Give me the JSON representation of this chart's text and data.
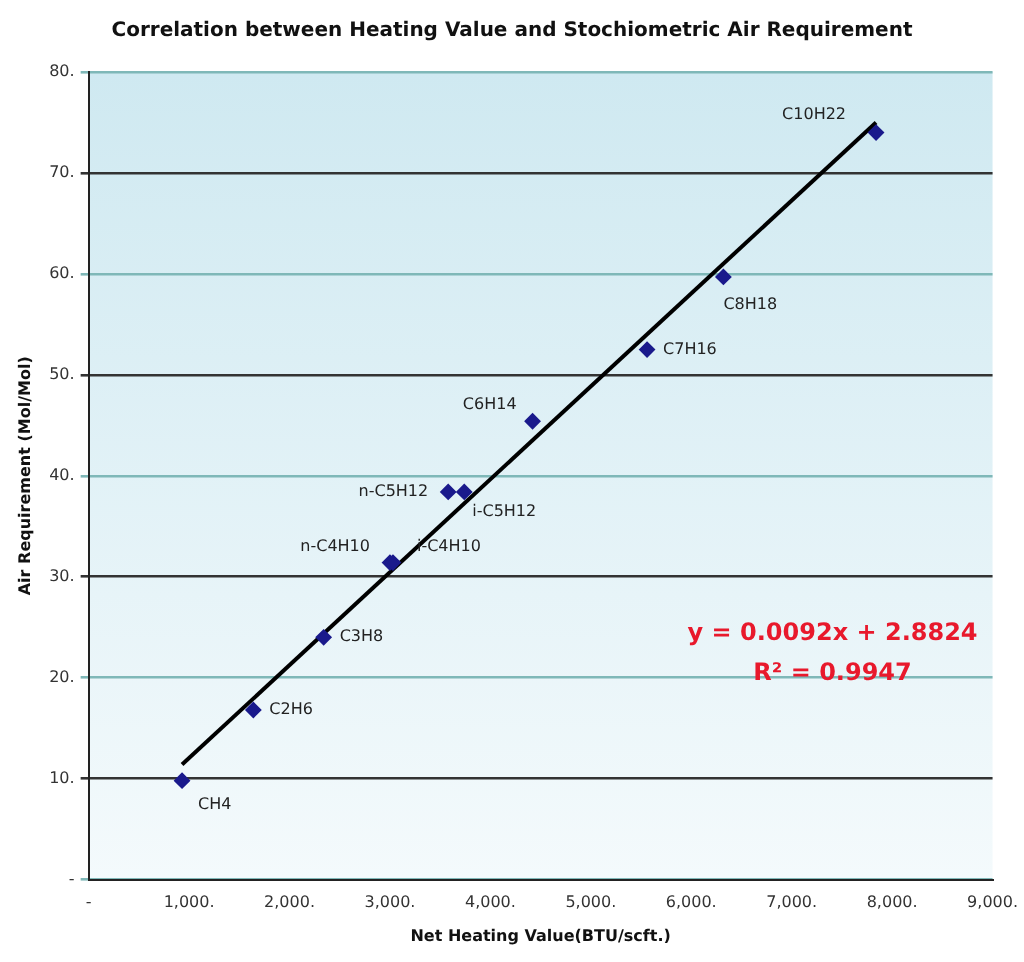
{
  "chart_data": {
    "type": "scatter",
    "title": "Correlation between Heating Value and Stochiometric Air Requirement",
    "xlabel": "Net Heating Value(BTU/scft.)",
    "ylabel": "Air Requirement (Mol/Mol)",
    "xlim": [
      0,
      9000
    ],
    "ylim": [
      0,
      80
    ],
    "xticks": [
      {
        "value": 0,
        "label": "-"
      },
      {
        "value": 1000,
        "label": "1,000."
      },
      {
        "value": 2000,
        "label": "2,000."
      },
      {
        "value": 3000,
        "label": "3,000."
      },
      {
        "value": 4000,
        "label": "4,000."
      },
      {
        "value": 5000,
        "label": "5,000."
      },
      {
        "value": 6000,
        "label": "6,000."
      },
      {
        "value": 7000,
        "label": "7,000."
      },
      {
        "value": 8000,
        "label": "8,000."
      },
      {
        "value": 9000,
        "label": "9,000."
      }
    ],
    "yticks": [
      {
        "value": 0,
        "label": "-"
      },
      {
        "value": 10,
        "label": "10."
      },
      {
        "value": 20,
        "label": "20."
      },
      {
        "value": 30,
        "label": "30."
      },
      {
        "value": 40,
        "label": "40."
      },
      {
        "value": 50,
        "label": "50."
      },
      {
        "value": 60,
        "label": "60."
      },
      {
        "value": 70,
        "label": "70."
      },
      {
        "value": 80,
        "label": "80."
      }
    ],
    "grid": "y",
    "legend": false,
    "marker": "diamond",
    "series": [
      {
        "type": "scatter",
        "color": "#1a1a8c",
        "x": [
          930,
          1640,
          2340,
          3000,
          3030,
          3580,
          3740,
          4420,
          5560,
          6320,
          7840
        ],
        "values": [
          9.8,
          16.8,
          24,
          31.4,
          31.4,
          38.4,
          38.4,
          45.4,
          52.5,
          59.7,
          74
        ]
      },
      {
        "type": "line",
        "marker": "none",
        "color": "#000000",
        "x": [
          930,
          7840
        ],
        "values": [
          11.4,
          75.0
        ]
      }
    ],
    "annotations": [
      {
        "text": "CH4",
        "x": 930,
        "y": 9.8
      },
      {
        "text": "C2H6",
        "x": 1640,
        "y": 16.8
      },
      {
        "text": "C3H8",
        "x": 2340,
        "y": 24
      },
      {
        "text": "n-C4H10",
        "x": 3000,
        "y": 31.4
      },
      {
        "text": "i-C4H10",
        "x": 3030,
        "y": 31.4
      },
      {
        "text": "n-C5H12",
        "x": 3580,
        "y": 38.4
      },
      {
        "text": "i-C5H12",
        "x": 3740,
        "y": 38.4
      },
      {
        "text": "C6H14",
        "x": 4420,
        "y": 45.4
      },
      {
        "text": "C7H16",
        "x": 5560,
        "y": 52.5
      },
      {
        "text": "C8H18",
        "x": 6320,
        "y": 59.7
      },
      {
        "text": "C10H22",
        "x": 7840,
        "y": 74
      },
      "y = 0.0092x + 2.8824",
      "R² = 0.9947"
    ]
  }
}
